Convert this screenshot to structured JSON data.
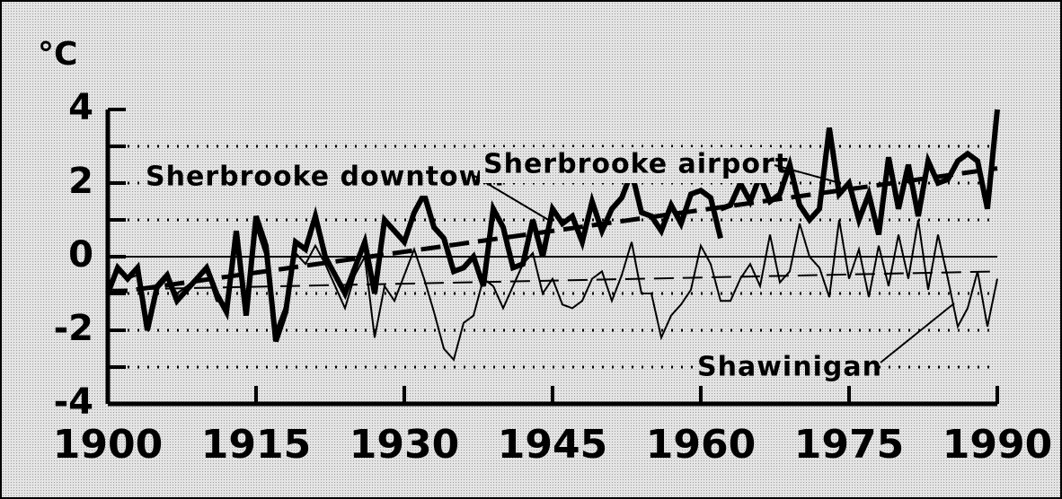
{
  "chart_data": {
    "type": "line",
    "y_unit_label": "°C",
    "x": [
      1900,
      1901,
      1902,
      1903,
      1904,
      1905,
      1906,
      1907,
      1908,
      1909,
      1910,
      1911,
      1912,
      1913,
      1914,
      1915,
      1916,
      1917,
      1918,
      1919,
      1920,
      1921,
      1922,
      1923,
      1924,
      1925,
      1926,
      1927,
      1928,
      1929,
      1930,
      1931,
      1932,
      1933,
      1934,
      1935,
      1936,
      1937,
      1938,
      1939,
      1940,
      1941,
      1942,
      1943,
      1944,
      1945,
      1946,
      1947,
      1948,
      1949,
      1950,
      1951,
      1952,
      1953,
      1954,
      1955,
      1956,
      1957,
      1958,
      1959,
      1960,
      1961,
      1962,
      1963,
      1964,
      1965,
      1966,
      1967,
      1968,
      1969,
      1970,
      1971,
      1972,
      1973,
      1974,
      1975,
      1976,
      1977,
      1978,
      1979,
      1980,
      1981,
      1982,
      1983,
      1984,
      1985,
      1986,
      1987,
      1988,
      1989,
      1990
    ],
    "series": [
      {
        "name": "Sherbrooke downtown",
        "color": "#000000",
        "values": [
          -1.0,
          -0.3,
          -0.6,
          -0.3,
          -2.0,
          -0.8,
          -0.5,
          -1.2,
          -0.9,
          -0.6,
          -0.3,
          -1.0,
          -1.5,
          0.7,
          -1.6,
          1.1,
          0.3,
          -2.3,
          -1.5,
          0.4,
          0.2,
          1.1,
          0.0,
          -0.5,
          -1.0,
          -0.3,
          0.4,
          -1.0,
          1.0,
          0.7,
          0.4,
          1.2,
          1.7,
          0.8,
          0.5,
          -0.4,
          -0.3,
          0.0,
          -0.8,
          1.3,
          0.8,
          -0.3,
          -0.2,
          1.0,
          0.0,
          1.3,
          0.9,
          1.1,
          0.4,
          1.5,
          0.7,
          1.3,
          1.6,
          2.3,
          1.2,
          1.1,
          0.7,
          1.4,
          0.9,
          1.7,
          1.8,
          1.6,
          0.5,
          null,
          null,
          null,
          null,
          null,
          null,
          null,
          null,
          null,
          null,
          null,
          null,
          null,
          null,
          null,
          null,
          null,
          null,
          null,
          null,
          null,
          null,
          null,
          null,
          null,
          null,
          null,
          null
        ]
      },
      {
        "name": "Sherbrooke airport",
        "color": "#000000",
        "values": [
          null,
          null,
          null,
          null,
          null,
          null,
          null,
          null,
          null,
          null,
          null,
          null,
          null,
          null,
          null,
          null,
          null,
          null,
          null,
          null,
          null,
          null,
          null,
          null,
          null,
          null,
          null,
          null,
          null,
          null,
          null,
          null,
          null,
          null,
          null,
          null,
          null,
          null,
          null,
          null,
          null,
          null,
          null,
          null,
          null,
          null,
          null,
          null,
          null,
          null,
          null,
          null,
          null,
          null,
          null,
          null,
          null,
          null,
          null,
          null,
          null,
          null,
          1.3,
          1.4,
          2.0,
          1.5,
          2.2,
          1.5,
          1.7,
          2.5,
          1.4,
          1.0,
          1.3,
          3.5,
          1.7,
          2.0,
          1.0,
          1.7,
          0.6,
          2.7,
          1.3,
          2.5,
          1.1,
          2.6,
          2.0,
          2.1,
          2.6,
          2.8,
          2.6,
          1.3,
          4.0
        ]
      },
      {
        "name": "Shawinigan",
        "color": "#000000",
        "values": [
          -0.8,
          -0.4,
          -0.6,
          -0.5,
          -1.8,
          -0.9,
          -0.6,
          -1.0,
          -0.8,
          -0.6,
          -0.4,
          -1.2,
          -1.3,
          0.4,
          -1.4,
          0.8,
          0.0,
          -2.0,
          -1.3,
          0.1,
          -0.2,
          0.3,
          -0.2,
          -0.8,
          -1.4,
          -0.5,
          0.0,
          -2.2,
          -0.8,
          -1.2,
          -0.5,
          0.2,
          -0.6,
          -1.5,
          -2.5,
          -2.8,
          -1.8,
          -1.6,
          -0.6,
          -0.8,
          -1.4,
          -0.8,
          -0.2,
          0.1,
          -1.0,
          -0.6,
          -1.3,
          -1.4,
          -1.2,
          -0.6,
          -0.4,
          -1.2,
          -0.5,
          0.4,
          -1.0,
          -1.0,
          -2.2,
          -1.6,
          -1.3,
          -0.9,
          0.3,
          -0.2,
          -1.2,
          -1.2,
          -0.6,
          -0.2,
          -0.8,
          0.6,
          -0.7,
          -0.4,
          0.9,
          0.0,
          -0.3,
          -1.1,
          1.0,
          -0.6,
          0.2,
          -1.1,
          0.3,
          -0.8,
          0.6,
          -0.6,
          1.0,
          -0.9,
          0.6,
          -0.6,
          -1.9,
          -1.4,
          -0.4,
          -1.9,
          -0.6
        ]
      }
    ],
    "trends": [
      {
        "x": [
          1900,
          1990
        ],
        "values": [
          -1.0,
          2.4
        ]
      },
      {
        "x": [
          1900,
          1990
        ],
        "values": [
          -0.9,
          -0.4
        ]
      }
    ],
    "xlim": [
      1900,
      1990
    ],
    "xticks": [
      1900,
      1915,
      1930,
      1945,
      1960,
      1975,
      1990
    ],
    "ylim": [
      -4,
      4
    ],
    "yticks": [
      -4,
      -2,
      0,
      2,
      4
    ],
    "y_minor_ticks": [
      -3,
      -1,
      1,
      3
    ],
    "grid": true
  }
}
